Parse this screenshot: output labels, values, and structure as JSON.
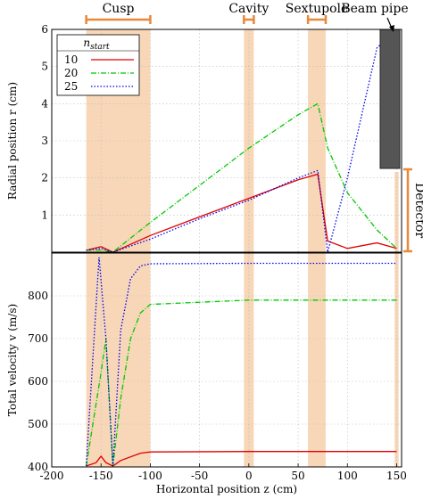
{
  "chart_data": [
    {
      "type": "line",
      "panel": "top",
      "ylabel": "Radial position r (cm)",
      "xlim": [
        -200,
        155
      ],
      "ylim": [
        0,
        6
      ],
      "yticks": [
        "1",
        "2",
        "3",
        "4",
        "5",
        "6"
      ],
      "grid": true,
      "legend": {
        "title": "n_start",
        "placement": "top-left",
        "entries": [
          "10",
          "20",
          "25"
        ]
      },
      "series": [
        {
          "name": "10",
          "color": "#e00000",
          "dash": "solid",
          "x": [
            -165,
            -150,
            -138,
            -100,
            -50,
            0,
            50,
            70,
            80,
            100,
            130,
            150
          ],
          "y": [
            0.05,
            0.15,
            0.0,
            0.45,
            0.95,
            1.45,
            1.95,
            2.1,
            0.3,
            0.1,
            0.25,
            0.1
          ]
        },
        {
          "name": "20",
          "color": "#00c800",
          "dash": "dash-dot",
          "x": [
            -165,
            -150,
            -138,
            -100,
            -50,
            0,
            50,
            70,
            80,
            100,
            130,
            150
          ],
          "y": [
            0.05,
            0.05,
            0.0,
            0.8,
            1.8,
            2.8,
            3.7,
            4.0,
            2.8,
            1.6,
            0.6,
            0.1
          ]
        },
        {
          "name": "25",
          "color": "#0000ee",
          "dash": "dotted",
          "x": [
            -165,
            -150,
            -138,
            -100,
            -50,
            0,
            50,
            70,
            80,
            100,
            130,
            150
          ],
          "y": [
            0.05,
            0.1,
            0.0,
            0.35,
            0.9,
            1.4,
            2.0,
            2.2,
            0.0,
            2.0,
            5.5,
            6.0
          ]
        }
      ],
      "regions": [
        {
          "label": "Cusp",
          "x": [
            -165,
            -100
          ]
        },
        {
          "label": "Cavity",
          "x": [
            -5,
            5
          ]
        },
        {
          "label": "Sextupole",
          "x": [
            60,
            78
          ]
        },
        {
          "label": "Beam pipe",
          "x": [
            130,
            150
          ]
        }
      ],
      "annotations": [
        "Detector"
      ]
    },
    {
      "type": "line",
      "panel": "bottom",
      "xlabel": "Horizontal position z (cm)",
      "ylabel": "Total velocity v (m/s)",
      "xlim": [
        -200,
        155
      ],
      "ylim": [
        400,
        900
      ],
      "xticks": [
        "-200",
        "-150",
        "-100",
        "-50",
        "0",
        "50",
        "100",
        "150"
      ],
      "yticks": [
        "400",
        "500",
        "600",
        "700",
        "800"
      ],
      "grid": true,
      "series": [
        {
          "name": "10",
          "color": "#e00000",
          "dash": "solid",
          "x": [
            -165,
            -155,
            -150,
            -145,
            -138,
            -130,
            -110,
            -100,
            0,
            100,
            150
          ],
          "y": [
            402,
            410,
            425,
            410,
            402,
            415,
            432,
            435,
            436,
            436,
            436
          ]
        },
        {
          "name": "20",
          "color": "#00c800",
          "dash": "dash-dot",
          "x": [
            -165,
            -150,
            -145,
            -138,
            -130,
            -120,
            -110,
            -100,
            0,
            100,
            150
          ],
          "y": [
            402,
            620,
            700,
            402,
            560,
            700,
            760,
            780,
            790,
            790,
            790
          ]
        },
        {
          "name": "25",
          "color": "#0000ee",
          "dash": "dotted",
          "x": [
            -165,
            -152,
            -145,
            -138,
            -130,
            -120,
            -110,
            -100,
            0,
            100,
            150
          ],
          "y": [
            402,
            890,
            700,
            402,
            720,
            840,
            870,
            875,
            876,
            876,
            876
          ]
        }
      ]
    }
  ]
}
